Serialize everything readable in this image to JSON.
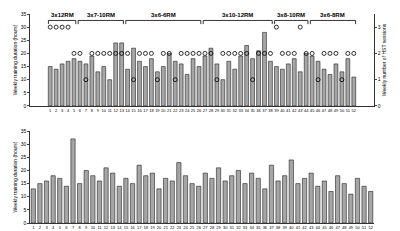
{
  "chart_data": [
    {
      "type": "bar",
      "y_label": "Weekly training duration (hours)",
      "y2_label": "Weekly number of HST sessions",
      "categories": [
        "1",
        "2",
        "3",
        "4",
        "5",
        "6",
        "7",
        "8",
        "9",
        "10",
        "11",
        "12",
        "13",
        "14",
        "15",
        "16",
        "17",
        "18",
        "19",
        "20",
        "21",
        "22",
        "23",
        "24",
        "25",
        "26",
        "27",
        "28",
        "29",
        "30",
        "31",
        "32",
        "33",
        "34",
        "35",
        "36",
        "37",
        "38",
        "39",
        "40",
        "41",
        "42",
        "43",
        "44",
        "45",
        "46",
        "47",
        "48",
        "49",
        "50",
        "51",
        "52"
      ],
      "series": [
        {
          "type": "bar",
          "color": "#a6a6a6",
          "values": [
            15,
            14,
            16,
            17,
            18,
            17,
            16,
            19,
            13,
            15,
            10,
            24,
            24,
            14,
            22,
            17,
            15,
            18,
            13,
            15,
            20,
            17,
            16,
            12,
            18,
            15,
            19,
            22,
            16,
            10,
            17,
            14,
            19,
            23,
            18,
            21,
            28,
            17,
            15,
            14,
            16,
            18,
            13,
            20,
            19,
            17,
            14,
            12,
            16,
            13,
            18,
            11
          ]
        },
        {
          "type": "scatter",
          "axis": "y2",
          "marker": "open-circle",
          "color": "#000000",
          "values": [
            3,
            3,
            3,
            3,
            2,
            2,
            1,
            2,
            2,
            2,
            2,
            2,
            2,
            2,
            1,
            2,
            2,
            2,
            1,
            2,
            2,
            1,
            2,
            2,
            2,
            2,
            2,
            2,
            1,
            2,
            2,
            2,
            2,
            2,
            1,
            2,
            2,
            2,
            3,
            2,
            2,
            2,
            3,
            2,
            2,
            1,
            2,
            2,
            2,
            1,
            2,
            2
          ]
        }
      ],
      "ylim": [
        0,
        35
      ],
      "yticks": [
        0,
        5,
        10,
        15,
        20,
        25,
        30,
        35
      ],
      "y2lim": [
        0,
        3.5
      ],
      "y2ticks": [
        0,
        1,
        2,
        3
      ],
      "phases": [
        {
          "label": "3x12RM",
          "start": "1",
          "end": "5"
        },
        {
          "label": "3x7-10RM",
          "start": "6",
          "end": "13"
        },
        {
          "label": "3x6-6RM",
          "start": "14",
          "end": "26"
        },
        {
          "label": "3x10-12RM",
          "start": "27",
          "end": "38"
        },
        {
          "label": "3x8-10RM",
          "start": "39",
          "end": "44"
        },
        {
          "label": "3x6-8RM",
          "start": "45",
          "end": "52"
        }
      ]
    },
    {
      "type": "bar",
      "y_label": "Weekly training duration (hours)",
      "categories": [
        "1",
        "2",
        "3",
        "4",
        "5",
        "6",
        "7",
        "8",
        "9",
        "10",
        "11",
        "12",
        "13",
        "14",
        "15",
        "16",
        "17",
        "18",
        "19",
        "20",
        "21",
        "22",
        "23",
        "24",
        "25",
        "26",
        "27",
        "28",
        "29",
        "30",
        "31",
        "32",
        "33",
        "34",
        "35",
        "36",
        "37",
        "38",
        "39",
        "40",
        "41",
        "42",
        "43",
        "44",
        "45",
        "46",
        "47",
        "48",
        "49",
        "50",
        "51",
        "52"
      ],
      "series": [
        {
          "type": "bar",
          "color": "#a6a6a6",
          "values": [
            13,
            15,
            16,
            18,
            17,
            14,
            32,
            15,
            20,
            18,
            16,
            21,
            19,
            14,
            17,
            15,
            22,
            18,
            19,
            13,
            17,
            16,
            23,
            18,
            15,
            14,
            19,
            17,
            21,
            16,
            18,
            20,
            15,
            19,
            17,
            13,
            22,
            16,
            18,
            24,
            15,
            17,
            19,
            14,
            16,
            12,
            18,
            15,
            11,
            17,
            14,
            12
          ]
        }
      ],
      "ylim": [
        0,
        35
      ],
      "yticks": [
        0,
        5,
        10,
        15,
        20,
        25,
        30,
        35
      ]
    }
  ]
}
